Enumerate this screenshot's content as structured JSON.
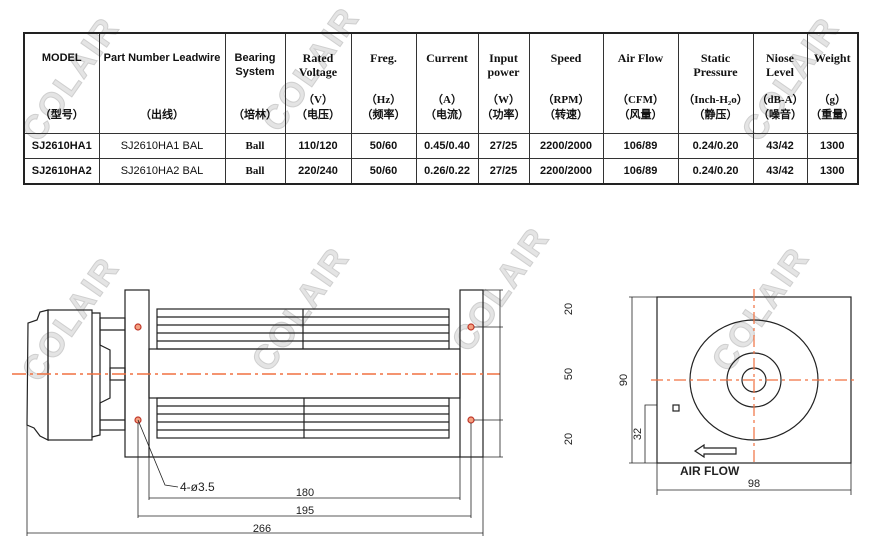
{
  "watermark": "COLAIR",
  "table": {
    "headers": [
      {
        "title": "MODEL",
        "unit": "",
        "cn": "（型号）"
      },
      {
        "title": "Part Number Leadwire",
        "unit": "",
        "cn": "（出线）"
      },
      {
        "title": "Bearing System",
        "unit": "",
        "cn": "（培林）"
      },
      {
        "title": "Rated Voltage",
        "unit": "（V）",
        "cn": "（电压）"
      },
      {
        "title": "Freg.",
        "unit": "（Hz）",
        "cn": "（频率）"
      },
      {
        "title": "Current",
        "unit": "（A）",
        "cn": "（电流）"
      },
      {
        "title": "Input power",
        "unit": "（W）",
        "cn": "（功率）"
      },
      {
        "title": "Speed",
        "unit": "（RPM）",
        "cn": "（转速）"
      },
      {
        "title": "Air Flow",
        "unit": "（CFM）",
        "cn": "（风量）"
      },
      {
        "title": "Static Pressure",
        "unit": "（Inch-H₂o）",
        "cn": "（静压）"
      },
      {
        "title": "Niose Level",
        "unit": "（dB-A）",
        "cn": "（噪音）"
      },
      {
        "title": "Weight",
        "unit": "（g）",
        "cn": "（重量）"
      }
    ],
    "rows": [
      [
        "SJ2610HA1",
        "SJ2610HA1 BAL",
        "Ball",
        "110/120",
        "50/60",
        "0.45/0.40",
        "27/25",
        "2200/2000",
        "106/89",
        "0.24/0.20",
        "43/42",
        "1300"
      ],
      [
        "SJ2610HA2",
        "SJ2610HA2 BAL",
        "Ball",
        "220/240",
        "50/60",
        "0.26/0.22",
        "27/25",
        "2200/2000",
        "106/89",
        "0.24/0.20",
        "43/42",
        "1300"
      ]
    ]
  },
  "drawing": {
    "side_view": {
      "dim_top": "20",
      "dim_middle": "50",
      "dim_bottom": "20",
      "holes": "4-ø3.5",
      "dim_180": "180",
      "dim_195": "195",
      "dim_266": "266"
    },
    "end_view": {
      "dim_height": "90",
      "dim_32": "32",
      "dim_width": "98",
      "air_flow_label": "AIR FLOW"
    },
    "colors": {
      "line": "#222222",
      "centerline": "#f07040",
      "hole": "#c0392b"
    }
  }
}
